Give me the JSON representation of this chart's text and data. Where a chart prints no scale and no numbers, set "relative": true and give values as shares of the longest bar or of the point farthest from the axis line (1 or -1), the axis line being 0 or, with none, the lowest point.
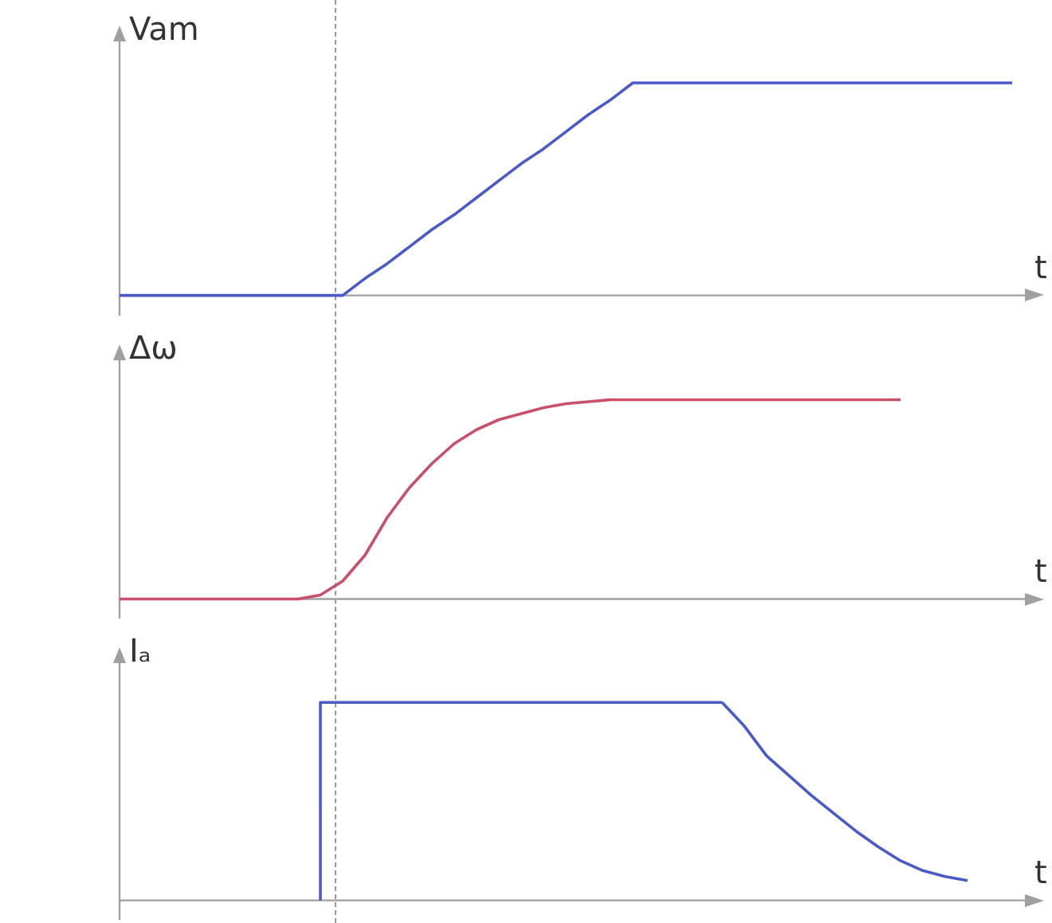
{
  "chart_data": [
    {
      "type": "line",
      "ylabel": "Vam",
      "xlabel": "t",
      "relative": true,
      "tick_labels": false,
      "categories": [
        null,
        null,
        null,
        null,
        null,
        null,
        null,
        null,
        null,
        null,
        null,
        null,
        null,
        null,
        null,
        null,
        null,
        null,
        null,
        null,
        null,
        null,
        null,
        null,
        null,
        null,
        null,
        null,
        null,
        null,
        null,
        null,
        null,
        null,
        null,
        null,
        null,
        null,
        null,
        null,
        null
      ],
      "series": [
        {
          "color": "#4a5bc8",
          "values": [
            0,
            0,
            0,
            0,
            0,
            0,
            0,
            0,
            0,
            0,
            0,
            0.08,
            0.15,
            0.23,
            0.31,
            0.38,
            0.46,
            0.54,
            0.62,
            0.69,
            0.77,
            0.85,
            0.92,
            1,
            1,
            1,
            1,
            1,
            1,
            1,
            1,
            1,
            1,
            1,
            1,
            1,
            1,
            1,
            1,
            1,
            1
          ]
        }
      ]
    },
    {
      "type": "line",
      "ylabel": "Δω",
      "xlabel": "t",
      "relative": true,
      "tick_labels": false,
      "categories": [
        null,
        null,
        null,
        null,
        null,
        null,
        null,
        null,
        null,
        null,
        null,
        null,
        null,
        null,
        null,
        null,
        null,
        null,
        null,
        null,
        null,
        null,
        null,
        null,
        null,
        null,
        null,
        null,
        null,
        null,
        null,
        null,
        null,
        null,
        null,
        null,
        null,
        null,
        null,
        null,
        null
      ],
      "series": [
        {
          "color": "#c8506a",
          "values": [
            0,
            0,
            0,
            0,
            0,
            0,
            0,
            0,
            0,
            0.02,
            0.09,
            0.22,
            0.41,
            0.56,
            0.68,
            0.78,
            0.85,
            0.9,
            0.93,
            0.96,
            0.98,
            0.99,
            1,
            1,
            1,
            1,
            1,
            1,
            1,
            1,
            1,
            1,
            1,
            1,
            1,
            1,
            null,
            null,
            null,
            null,
            null
          ]
        }
      ]
    },
    {
      "type": "line",
      "ylabel": "Iₐ",
      "xlabel": "t",
      "relative": true,
      "tick_labels": false,
      "categories": [
        null,
        null,
        null,
        null,
        null,
        null,
        null,
        null,
        null,
        null,
        null,
        null,
        null,
        null,
        null,
        null,
        null,
        null,
        null,
        null,
        null,
        null,
        null,
        null,
        null,
        null,
        null,
        null,
        null,
        null,
        null,
        null,
        null,
        null,
        null,
        null,
        null,
        null,
        null,
        null,
        null
      ],
      "series": [
        {
          "type": "step",
          "color": "#4a5bc8",
          "values": [
            null,
            null,
            null,
            null,
            null,
            null,
            null,
            null,
            null,
            0,
            1,
            1,
            1,
            1,
            1,
            1,
            1,
            1,
            1,
            1,
            1,
            1,
            1,
            1,
            1,
            1,
            1,
            1,
            null,
            null,
            null,
            null,
            null,
            null,
            null,
            null,
            null,
            null,
            null,
            null,
            null
          ]
        },
        {
          "color": "#4a5bc8",
          "values": [
            null,
            null,
            null,
            null,
            null,
            null,
            null,
            null,
            null,
            null,
            null,
            null,
            null,
            null,
            null,
            null,
            null,
            null,
            null,
            null,
            null,
            null,
            null,
            null,
            null,
            null,
            null,
            1,
            0.88,
            0.73,
            0.63,
            0.53,
            0.44,
            0.35,
            0.27,
            0.2,
            0.15,
            0.12,
            0.1,
            null,
            null
          ]
        }
      ]
    }
  ]
}
